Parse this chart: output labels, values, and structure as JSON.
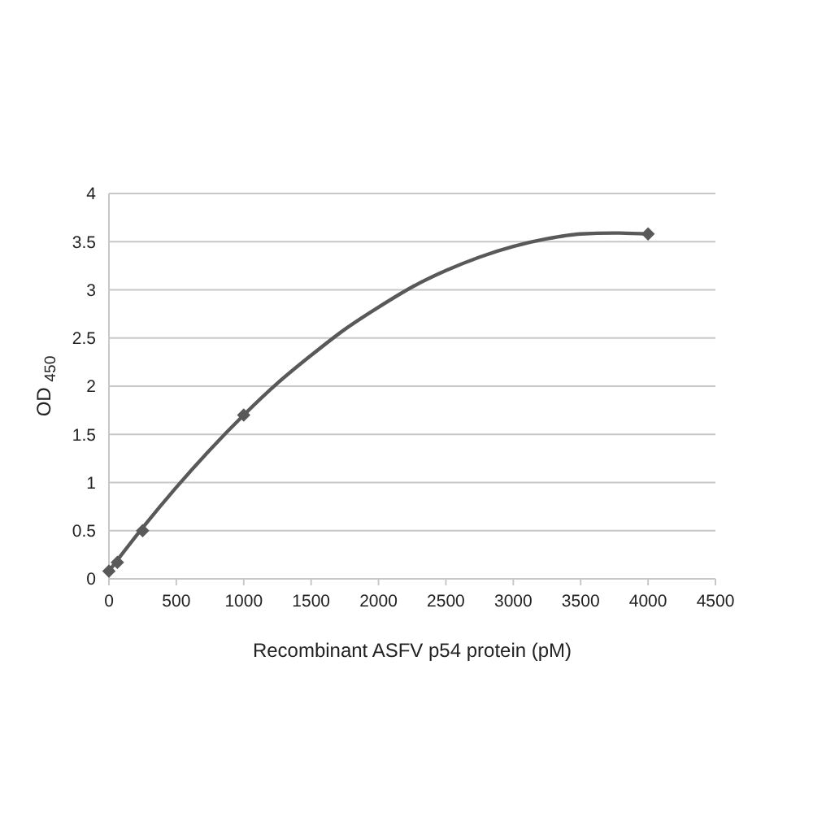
{
  "chart_data": {
    "type": "scatter",
    "xlabel": "Recombinant ASFV p54 protein (pM)",
    "ylabel": "OD $_{450}$",
    "xlim": [
      0,
      4500
    ],
    "xticks": [
      0,
      500,
      1000,
      1500,
      2000,
      2500,
      3000,
      3500,
      4000,
      4500
    ],
    "ylim": [
      0,
      4
    ],
    "yticks": [
      0,
      0.5,
      1,
      1.5,
      2,
      2.5,
      3,
      3.5,
      4
    ],
    "grid": "y",
    "marker": "diamond",
    "series": [
      {
        "color": "#595959",
        "x": [
          0,
          62.5,
          250,
          1000,
          4000
        ],
        "values": [
          0.08,
          0.17,
          0.5,
          1.7,
          3.58
        ]
      },
      {
        "type": "line",
        "color": "#595959",
        "marker": "none",
        "line_style": "solid",
        "x": [
          0,
          250,
          500,
          750,
          1000,
          1250,
          1500,
          1750,
          2000,
          2250,
          2500,
          2750,
          3000,
          3250,
          3500,
          3750,
          4000
        ],
        "values": [
          0.08,
          0.53,
          0.95,
          1.34,
          1.7,
          2.03,
          2.32,
          2.59,
          2.82,
          3.03,
          3.2,
          3.34,
          3.45,
          3.53,
          3.58,
          3.59,
          3.58
        ]
      }
    ]
  }
}
